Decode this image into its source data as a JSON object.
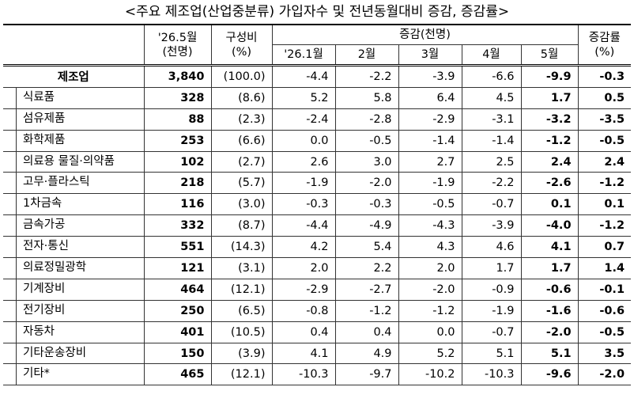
{
  "title": "<주요 제조업(산업중분류) 가입자수 및 전년동월대비 증감, 증감률>",
  "header": {
    "value": [
      "'26.5월",
      "(천명)"
    ],
    "share": [
      "구성비",
      "(%)"
    ],
    "change": "증감(천명)",
    "months": [
      "'26.1월",
      "2월",
      "3월",
      "4월",
      "5월"
    ],
    "rate": [
      "증감률",
      "(%)"
    ]
  },
  "table": {
    "rows": [
      [
        "제조업",
        "3,840",
        "(100.0)",
        "-4.4",
        "-2.2",
        "-3.9",
        "-6.6",
        "-9.9",
        "-0.3"
      ],
      [
        "식료품",
        "328",
        "(8.6)",
        "5.2",
        "5.8",
        "6.4",
        "4.5",
        "1.7",
        "0.5"
      ],
      [
        "섬유제품",
        "88",
        "(2.3)",
        "-2.4",
        "-2.8",
        "-2.9",
        "-3.1",
        "-3.2",
        "-3.5"
      ],
      [
        "화학제품",
        "253",
        "(6.6)",
        "0.0",
        "-0.5",
        "-1.4",
        "-1.4",
        "-1.2",
        "-0.5"
      ],
      [
        "의료용 물질·의약품",
        "102",
        "(2.7)",
        "2.6",
        "3.0",
        "2.7",
        "2.5",
        "2.4",
        "2.4"
      ],
      [
        "고무·플라스틱",
        "218",
        "(5.7)",
        "-1.9",
        "-2.0",
        "-1.9",
        "-2.2",
        "-2.6",
        "-1.2"
      ],
      [
        "1차금속",
        "116",
        "(3.0)",
        "-0.3",
        "-0.3",
        "-0.5",
        "-0.7",
        "0.1",
        "0.1"
      ],
      [
        "금속가공",
        "332",
        "(8.7)",
        "-4.4",
        "-4.9",
        "-4.3",
        "-3.9",
        "-4.0",
        "-1.2"
      ],
      [
        "전자·통신",
        "551",
        "(14.3)",
        "4.2",
        "5.4",
        "4.3",
        "4.6",
        "4.1",
        "0.7"
      ],
      [
        "의료정밀광학",
        "121",
        "(3.1)",
        "2.0",
        "2.2",
        "2.0",
        "1.7",
        "1.7",
        "1.4"
      ],
      [
        "기계장비",
        "464",
        "(12.1)",
        "-2.9",
        "-2.7",
        "-2.0",
        "-0.9",
        "-0.6",
        "-0.1"
      ],
      [
        "전기장비",
        "250",
        "(6.5)",
        "-0.8",
        "-1.2",
        "-1.2",
        "-1.9",
        "-1.6",
        "-0.6"
      ],
      [
        "자동차",
        "401",
        "(10.5)",
        "0.4",
        "0.4",
        "0.0",
        "-0.7",
        "-2.0",
        "-0.5"
      ],
      [
        "기타운송장비",
        "150",
        "(3.9)",
        "4.1",
        "4.9",
        "5.2",
        "5.1",
        "5.1",
        "3.5"
      ],
      [
        "기타*",
        "465",
        "(12.1)",
        "-10.3",
        "-9.7",
        "-10.2",
        "-10.3",
        "-9.6",
        "-2.0"
      ]
    ]
  }
}
